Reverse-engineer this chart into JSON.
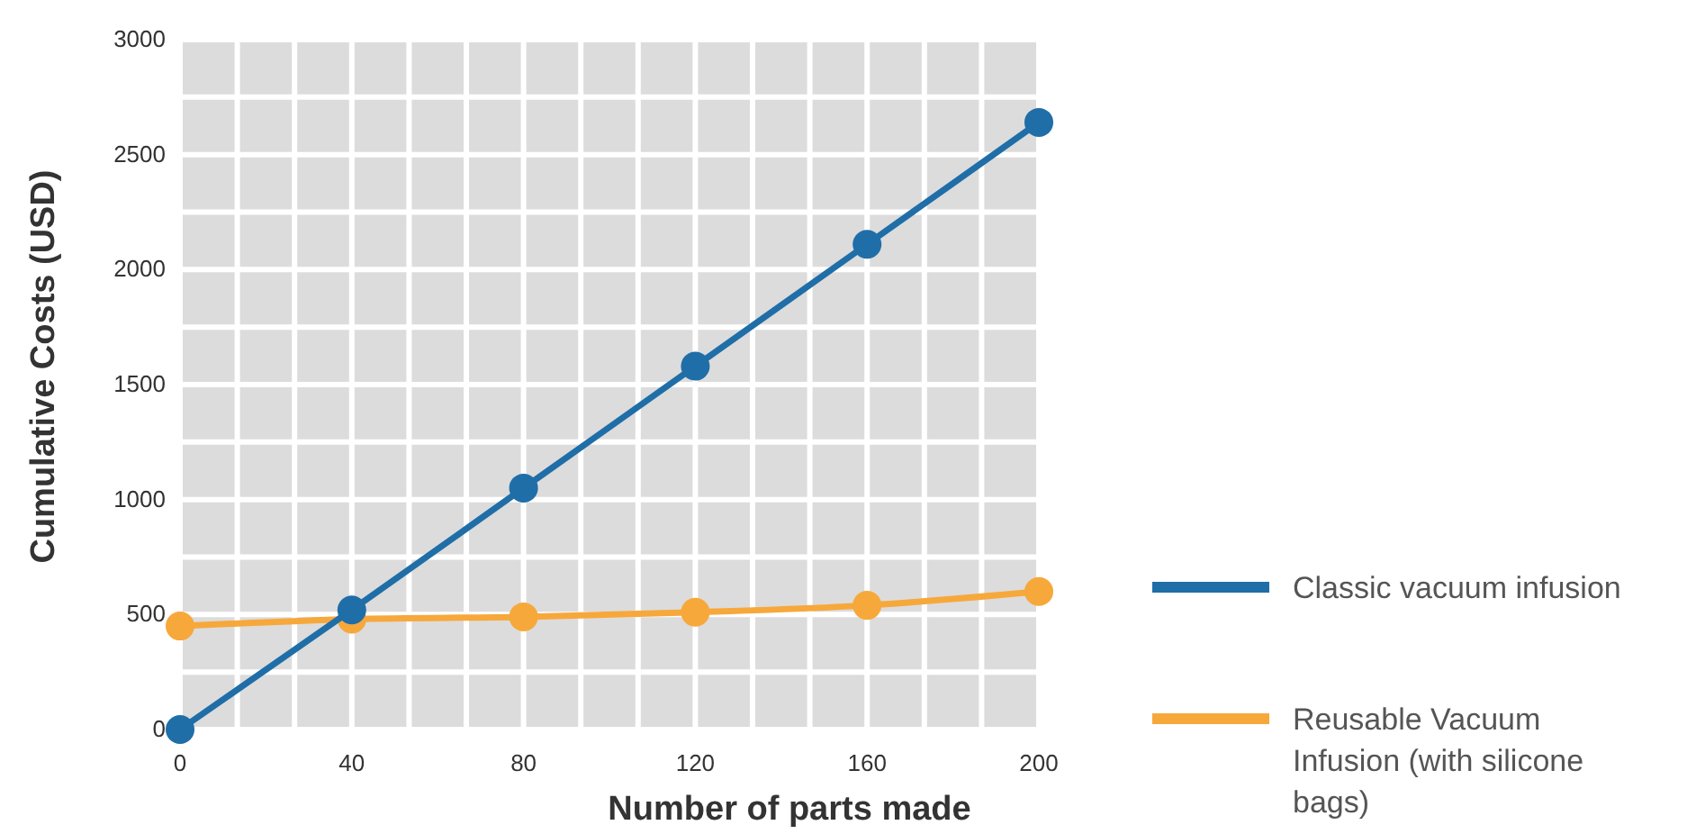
{
  "chart_data": {
    "type": "line",
    "xlabel": "Number of parts made",
    "ylabel": "Cumulative Costs (USD)",
    "x": [
      0,
      40,
      80,
      120,
      160,
      200
    ],
    "series": [
      {
        "name": "Classic vacuum infusion",
        "color": "#1f6ea8",
        "values": [
          0,
          520,
          1050,
          1580,
          2110,
          2640
        ]
      },
      {
        "name": "Reusable Vacuum Infusion (with silicone bags)",
        "color": "#f7a83a",
        "values": [
          450,
          480,
          490,
          510,
          540,
          600
        ]
      }
    ],
    "xlim": [
      0,
      200
    ],
    "xticks": [
      0,
      40,
      80,
      120,
      160,
      200
    ],
    "ylim": [
      0,
      3000
    ],
    "yticks": [
      0,
      500,
      1000,
      1500,
      2000,
      2500,
      3000
    ],
    "grid": true,
    "legend": "right",
    "marker": "circle",
    "line_style": "solid"
  }
}
